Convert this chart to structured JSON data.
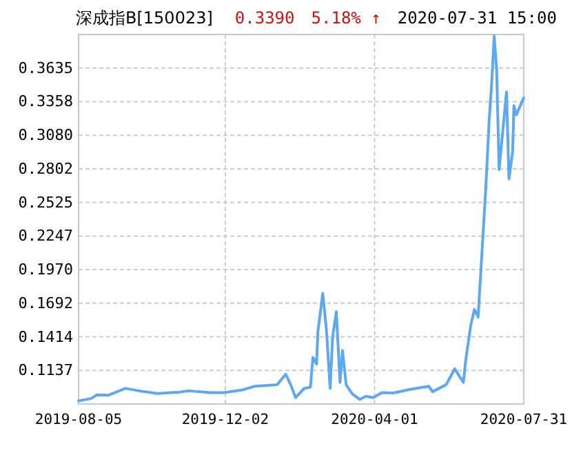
{
  "chart_data": {
    "type": "line",
    "title": "深成指B[150023]",
    "annotations": [
      "0.3390",
      "5.18% ↑",
      "2020-07-31 15:00"
    ],
    "x": [
      "2019-08-05",
      "2019-08-15",
      "2019-08-20",
      "2019-08-29",
      "2019-09-12",
      "2019-09-27",
      "2019-10-08",
      "2019-10-26",
      "2019-11-02",
      "2019-11-20",
      "2019-12-01",
      "2019-12-16",
      "2019-12-26",
      "2020-01-13",
      "2020-01-20",
      "2020-01-24",
      "2020-01-28",
      "2020-02-04",
      "2020-02-09",
      "2020-02-11",
      "2020-02-14",
      "2020-02-15",
      "2020-02-19",
      "2020-02-22",
      "2020-02-25",
      "2020-02-27",
      "2020-03-01",
      "2020-03-04",
      "2020-03-06",
      "2020-03-09",
      "2020-03-14",
      "2020-03-20",
      "2020-03-25",
      "2020-03-31",
      "2020-04-07",
      "2020-04-16",
      "2020-04-30",
      "2020-05-15",
      "2020-05-18",
      "2020-05-29",
      "2020-06-05",
      "2020-06-12",
      "2020-06-14",
      "2020-06-18",
      "2020-06-21",
      "2020-06-24",
      "2020-06-26",
      "2020-06-28",
      "2020-06-30",
      "2020-07-03",
      "2020-07-05",
      "2020-07-07",
      "2020-07-09",
      "2020-07-11",
      "2020-07-17",
      "2020-07-19",
      "2020-07-22",
      "2020-07-23",
      "2020-07-25",
      "2020-07-31"
    ],
    "series": [
      {
        "color": "#5ea8f0",
        "values": [
          0.0885,
          0.0904,
          0.0934,
          0.0931,
          0.0988,
          0.0961,
          0.0946,
          0.0957,
          0.0968,
          0.0953,
          0.0953,
          0.0976,
          0.1006,
          0.1018,
          0.1105,
          0.1018,
          0.0912,
          0.0988,
          0.0999,
          0.1244,
          0.1188,
          0.1452,
          0.1774,
          0.1471,
          0.0988,
          0.1415,
          0.1622,
          0.1037,
          0.1301,
          0.1018,
          0.0942,
          0.0897,
          0.0923,
          0.0912,
          0.0953,
          0.095,
          0.098,
          0.1006,
          0.0961,
          0.1018,
          0.115,
          0.1037,
          0.1225,
          0.1509,
          0.1641,
          0.1577,
          0.1925,
          0.2265,
          0.2607,
          0.3211,
          0.3514,
          0.39,
          0.3627,
          0.2796,
          0.3438,
          0.272,
          0.2947,
          0.3325,
          0.3249,
          0.339
        ]
      }
    ],
    "xlim": [
      "2019-08-05",
      "2020-07-31"
    ],
    "xticks": [
      {
        "value": "2019-08-05",
        "label": "2019-08-05"
      },
      {
        "value": "2019-12-02",
        "label": "2019-12-02"
      },
      {
        "value": "2020-04-01",
        "label": "2020-04-01"
      },
      {
        "value": "2020-07-31",
        "label": "2020-07-31"
      }
    ],
    "ylim": [
      0.0859,
      0.3913
    ],
    "yticks": [
      0.1137,
      0.1414,
      0.1692,
      {
        "value": 0.197,
        "label": "0.1970"
      },
      0.2247,
      0.2525,
      0.2802,
      {
        "value": 0.308,
        "label": "0.3080"
      },
      0.3358,
      0.3635
    ],
    "grid": true
  }
}
